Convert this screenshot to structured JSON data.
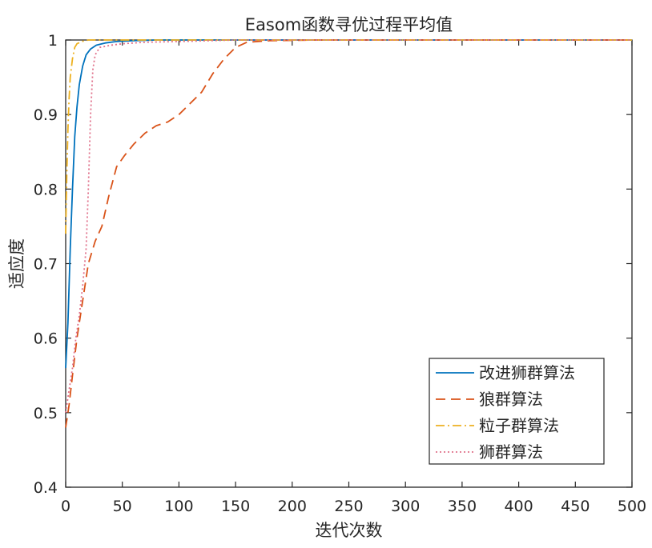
{
  "chart_data": {
    "type": "line",
    "title": "Easom函数寻优过程平均值",
    "xlabel": "迭代次数",
    "ylabel": "适应度",
    "xlim": [
      0,
      500
    ],
    "ylim": [
      0.4,
      1
    ],
    "xticks": [
      0,
      50,
      100,
      150,
      200,
      250,
      300,
      350,
      400,
      450,
      500
    ],
    "yticks": [
      0.4,
      0.5,
      0.6,
      0.7,
      0.8,
      0.9,
      1
    ],
    "xtick_labels": [
      "0",
      "50",
      "100",
      "150",
      "200",
      "250",
      "300",
      "350",
      "400",
      "450",
      "500"
    ],
    "ytick_labels": [
      "0.4",
      "0.5",
      "0.6",
      "0.7",
      "0.8",
      "0.9",
      "1"
    ],
    "grid": false,
    "legend_position": "bottom-right",
    "series": [
      {
        "name": "改进狮群算法",
        "color": "#0072BD",
        "dash": "solid",
        "x": [
          0,
          2,
          4,
          6,
          8,
          10,
          12,
          15,
          18,
          22,
          27,
          35,
          45,
          60,
          80,
          120,
          500
        ],
        "y": [
          0.56,
          0.62,
          0.72,
          0.8,
          0.87,
          0.91,
          0.94,
          0.965,
          0.98,
          0.988,
          0.993,
          0.996,
          0.998,
          0.999,
          1.0,
          1.0,
          1.0
        ]
      },
      {
        "name": "狼群算法",
        "color": "#D95319",
        "dash": "dashed",
        "x": [
          0,
          3,
          6,
          10,
          15,
          20,
          26,
          32,
          38,
          45,
          52,
          60,
          70,
          80,
          90,
          100,
          110,
          120,
          130,
          140,
          150,
          160,
          180,
          220,
          500
        ],
        "y": [
          0.48,
          0.51,
          0.55,
          0.6,
          0.65,
          0.7,
          0.73,
          0.75,
          0.79,
          0.83,
          0.845,
          0.86,
          0.875,
          0.885,
          0.89,
          0.9,
          0.915,
          0.93,
          0.955,
          0.975,
          0.99,
          0.997,
          0.999,
          1.0,
          1.0
        ]
      },
      {
        "name": "粒子群算法",
        "color": "#EDB120",
        "dash": "dashdot",
        "x": [
          0,
          1,
          2,
          3,
          4,
          6,
          8,
          10,
          14,
          20,
          30,
          500
        ],
        "y": [
          0.74,
          0.82,
          0.88,
          0.92,
          0.95,
          0.975,
          0.99,
          0.995,
          0.998,
          1.0,
          1.0,
          1.0
        ]
      },
      {
        "name": "狮群算法",
        "color": "#E0708A",
        "dash": "dotted",
        "x": [
          0,
          3,
          6,
          9,
          12,
          15,
          18,
          20,
          22,
          24,
          26,
          30,
          40,
          50,
          70,
          100,
          150,
          500
        ],
        "y": [
          0.5,
          0.53,
          0.56,
          0.6,
          0.63,
          0.67,
          0.72,
          0.8,
          0.9,
          0.96,
          0.98,
          0.99,
          0.993,
          0.995,
          0.997,
          0.998,
          1.0,
          1.0
        ]
      }
    ]
  }
}
